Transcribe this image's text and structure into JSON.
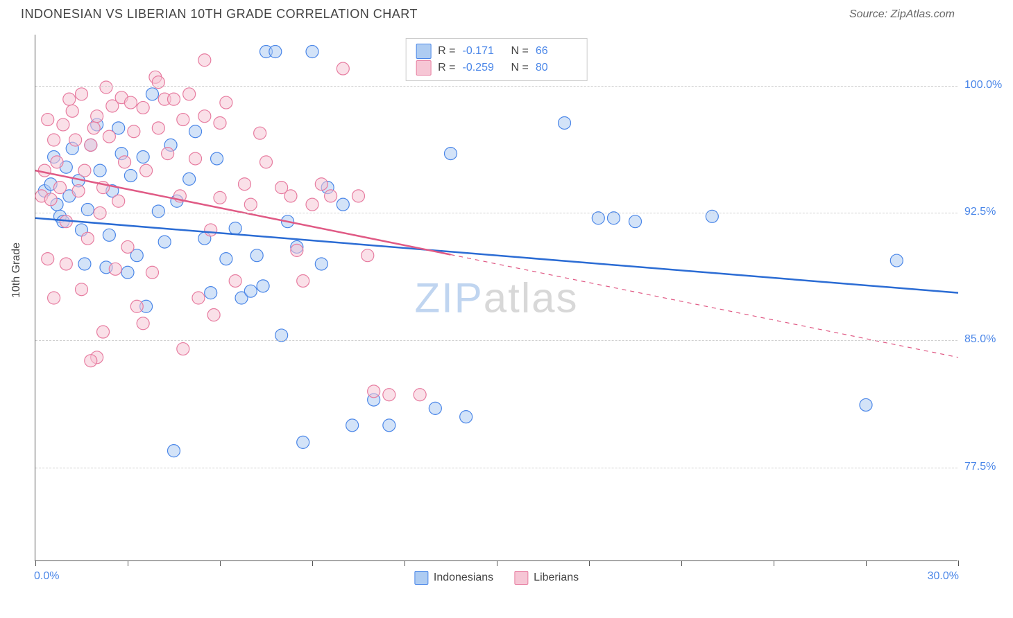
{
  "header": {
    "title": "INDONESIAN VS LIBERIAN 10TH GRADE CORRELATION CHART",
    "source_prefix": "Source: ",
    "source": "ZipAtlas.com"
  },
  "chart": {
    "type": "scatter",
    "ylabel": "10th Grade",
    "xlim": [
      0,
      30
    ],
    "ylim": [
      72,
      103
    ],
    "xticks": [
      0,
      3,
      6,
      9,
      12,
      15,
      18,
      21,
      24,
      27,
      30
    ],
    "yticks": [
      77.5,
      85.0,
      92.5,
      100.0
    ],
    "ytick_labels": [
      "77.5%",
      "85.0%",
      "92.5%",
      "100.0%"
    ],
    "xmin_label": "0.0%",
    "xmax_label": "30.0%",
    "grid_color": "#d0d0d0",
    "background_color": "#ffffff",
    "point_radius": 9,
    "point_opacity": 0.55,
    "watermark": {
      "zip": "ZIP",
      "atlas": "atlas"
    },
    "series": [
      {
        "name": "Indonesians",
        "color_fill": "#aeccf2",
        "color_stroke": "#4a86e8",
        "r_label": "R =",
        "r_value": "-0.171",
        "n_label": "N =",
        "n_value": "66",
        "trend": {
          "x1": 0,
          "y1": 92.2,
          "x2": 30,
          "y2": 87.8,
          "solid_until_x": 30,
          "color": "#2b6cd4",
          "width": 2.5
        },
        "points": [
          [
            0.3,
            93.8
          ],
          [
            0.5,
            94.2
          ],
          [
            0.6,
            95.8
          ],
          [
            0.7,
            93.0
          ],
          [
            0.8,
            92.3
          ],
          [
            0.9,
            92.0
          ],
          [
            1.0,
            95.2
          ],
          [
            1.1,
            93.5
          ],
          [
            1.2,
            96.3
          ],
          [
            1.4,
            94.4
          ],
          [
            1.5,
            91.5
          ],
          [
            1.6,
            89.5
          ],
          [
            1.7,
            92.7
          ],
          [
            1.8,
            96.5
          ],
          [
            2.0,
            97.7
          ],
          [
            2.1,
            95.0
          ],
          [
            2.3,
            89.3
          ],
          [
            2.4,
            91.2
          ],
          [
            2.5,
            93.8
          ],
          [
            2.7,
            97.5
          ],
          [
            2.8,
            96.0
          ],
          [
            3.0,
            89.0
          ],
          [
            3.1,
            94.7
          ],
          [
            3.3,
            90.0
          ],
          [
            3.5,
            95.8
          ],
          [
            3.6,
            87.0
          ],
          [
            3.8,
            99.5
          ],
          [
            4.0,
            92.6
          ],
          [
            4.2,
            90.8
          ],
          [
            4.4,
            96.5
          ],
          [
            4.5,
            78.5
          ],
          [
            4.6,
            93.2
          ],
          [
            5.0,
            94.5
          ],
          [
            5.2,
            97.3
          ],
          [
            5.5,
            91.0
          ],
          [
            5.7,
            87.8
          ],
          [
            5.9,
            95.7
          ],
          [
            6.2,
            89.8
          ],
          [
            6.5,
            91.6
          ],
          [
            6.7,
            87.5
          ],
          [
            7.0,
            87.9
          ],
          [
            7.2,
            90.0
          ],
          [
            7.4,
            88.2
          ],
          [
            7.5,
            102.0
          ],
          [
            7.8,
            102.0
          ],
          [
            8.0,
            85.3
          ],
          [
            8.2,
            92.0
          ],
          [
            8.5,
            90.5
          ],
          [
            8.7,
            79.0
          ],
          [
            9.0,
            102.0
          ],
          [
            9.3,
            89.5
          ],
          [
            9.5,
            94.0
          ],
          [
            10.0,
            93.0
          ],
          [
            10.3,
            80.0
          ],
          [
            11.0,
            81.5
          ],
          [
            11.5,
            80.0
          ],
          [
            13.0,
            81.0
          ],
          [
            13.5,
            96.0
          ],
          [
            14.0,
            80.5
          ],
          [
            17.2,
            97.8
          ],
          [
            18.3,
            92.2
          ],
          [
            18.8,
            92.2
          ],
          [
            19.5,
            92.0
          ],
          [
            22.0,
            92.3
          ],
          [
            28.0,
            89.7
          ],
          [
            27.0,
            81.2
          ]
        ]
      },
      {
        "name": "Liberians",
        "color_fill": "#f6c6d5",
        "color_stroke": "#e77ca0",
        "r_label": "R =",
        "r_value": "-0.259",
        "n_label": "N =",
        "n_value": "80",
        "trend": {
          "x1": 0,
          "y1": 95.0,
          "x2": 30,
          "y2": 84.0,
          "solid_until_x": 13.5,
          "color": "#e05a85",
          "width": 2.5
        },
        "points": [
          [
            0.2,
            93.5
          ],
          [
            0.3,
            95.0
          ],
          [
            0.4,
            98.0
          ],
          [
            0.5,
            93.3
          ],
          [
            0.6,
            96.8
          ],
          [
            0.7,
            95.5
          ],
          [
            0.8,
            94.0
          ],
          [
            0.9,
            97.7
          ],
          [
            1.0,
            92.0
          ],
          [
            1.1,
            99.2
          ],
          [
            1.2,
            98.5
          ],
          [
            1.3,
            96.8
          ],
          [
            1.4,
            93.8
          ],
          [
            1.5,
            99.5
          ],
          [
            1.6,
            95.0
          ],
          [
            1.7,
            91.0
          ],
          [
            1.8,
            96.5
          ],
          [
            1.9,
            97.5
          ],
          [
            2.0,
            98.2
          ],
          [
            2.1,
            92.5
          ],
          [
            2.2,
            94.0
          ],
          [
            2.3,
            99.9
          ],
          [
            2.4,
            97.0
          ],
          [
            2.5,
            98.8
          ],
          [
            2.6,
            89.2
          ],
          [
            2.7,
            93.2
          ],
          [
            2.8,
            99.3
          ],
          [
            2.9,
            95.5
          ],
          [
            3.0,
            90.5
          ],
          [
            3.1,
            99.0
          ],
          [
            3.2,
            97.3
          ],
          [
            3.3,
            87.0
          ],
          [
            3.5,
            98.7
          ],
          [
            3.6,
            95.0
          ],
          [
            3.8,
            89.0
          ],
          [
            3.9,
            100.5
          ],
          [
            4.0,
            97.5
          ],
          [
            4.2,
            99.2
          ],
          [
            4.3,
            96.0
          ],
          [
            4.5,
            99.2
          ],
          [
            4.7,
            93.5
          ],
          [
            4.8,
            98.0
          ],
          [
            5.0,
            99.5
          ],
          [
            5.2,
            95.7
          ],
          [
            5.3,
            87.5
          ],
          [
            5.5,
            98.2
          ],
          [
            5.7,
            91.5
          ],
          [
            5.8,
            86.5
          ],
          [
            6.0,
            93.4
          ],
          [
            6.2,
            99.0
          ],
          [
            6.5,
            88.5
          ],
          [
            6.8,
            94.2
          ],
          [
            7.0,
            93.0
          ],
          [
            7.3,
            97.2
          ],
          [
            7.5,
            95.5
          ],
          [
            8.0,
            94.0
          ],
          [
            8.3,
            93.5
          ],
          [
            8.5,
            90.3
          ],
          [
            8.7,
            88.5
          ],
          [
            9.0,
            93.0
          ],
          [
            9.3,
            94.2
          ],
          [
            9.6,
            93.5
          ],
          [
            10.0,
            101.0
          ],
          [
            10.5,
            93.5
          ],
          [
            10.8,
            90.0
          ],
          [
            11.0,
            82.0
          ],
          [
            11.5,
            81.8
          ],
          [
            12.5,
            81.8
          ],
          [
            2.0,
            84.0
          ],
          [
            2.2,
            85.5
          ],
          [
            1.5,
            88.0
          ],
          [
            1.0,
            89.5
          ],
          [
            3.5,
            86.0
          ],
          [
            1.8,
            83.8
          ],
          [
            4.8,
            84.5
          ],
          [
            0.4,
            89.8
          ],
          [
            0.6,
            87.5
          ],
          [
            5.5,
            101.5
          ],
          [
            6.0,
            97.8
          ],
          [
            4.0,
            100.2
          ]
        ]
      }
    ]
  },
  "bottom_legend": [
    {
      "label": "Indonesians",
      "fill": "#aeccf2",
      "stroke": "#4a86e8"
    },
    {
      "label": "Liberians",
      "fill": "#f6c6d5",
      "stroke": "#e77ca0"
    }
  ]
}
